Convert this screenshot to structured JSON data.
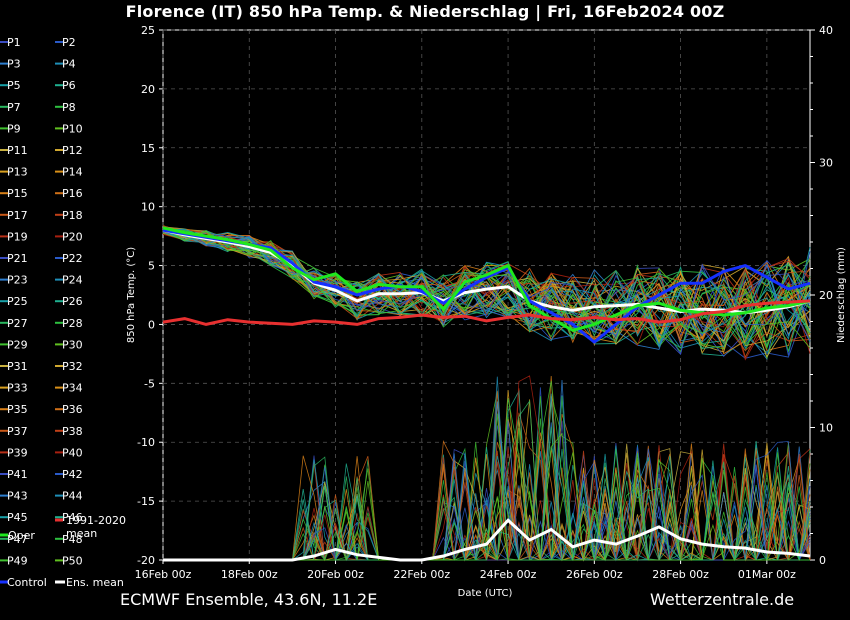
{
  "header": {
    "title": "Florence  (IT)  850 hPa Temp. & Niederschlag | Fri, 16Feb2024 00Z"
  },
  "footer": {
    "source": "ECMWF Ensemble, 43.6N, 11.2E",
    "site": "Wetterzentrale.de"
  },
  "chart_data": {
    "type": "line",
    "xlabel": "Date (UTC)",
    "ylabel": "850 hPa Temp. (°C)",
    "y2label": "Niederschlag (mm)",
    "ylim": [
      -20,
      25
    ],
    "y2lim": [
      0,
      40
    ],
    "y_ticks": [
      25,
      20,
      15,
      10,
      5,
      0,
      -5,
      -10,
      -15,
      -20
    ],
    "y2_ticks": [
      40,
      30,
      20,
      10,
      0
    ],
    "x_tick_labels": [
      "16Feb 00z",
      "18Feb 00z",
      "20Feb 00z",
      "22Feb 00z",
      "24Feb 00z",
      "26Feb 00z",
      "28Feb 00z",
      "01Mar 00z"
    ],
    "x_tick_days": [
      0,
      2,
      4,
      6,
      8,
      10,
      12,
      14
    ],
    "x_days_max": 15,
    "grid": true,
    "legend_position": "left",
    "legend": {
      "members": [
        "P1",
        "P2",
        "P3",
        "P4",
        "P5",
        "P6",
        "P7",
        "P8",
        "P9",
        "P10",
        "P11",
        "P12",
        "P13",
        "P14",
        "P15",
        "P16",
        "P17",
        "P18",
        "P19",
        "P20",
        "P21",
        "P22",
        "P23",
        "P24",
        "P25",
        "P26",
        "P27",
        "P28",
        "P29",
        "P30",
        "P31",
        "P32",
        "P33",
        "P34",
        "P35",
        "P36",
        "P37",
        "P38",
        "P39",
        "P40",
        "P41",
        "P42",
        "P43",
        "P44",
        "P45",
        "P46",
        "P47",
        "P48",
        "P49",
        "P50"
      ],
      "member_colors": [
        "#3a4cc0",
        "#2a5ac8",
        "#2e7fd0",
        "#1f8fb8",
        "#18a0a8",
        "#1fb090",
        "#2ab860",
        "#2ec040",
        "#40c030",
        "#60c020",
        "#c8b040",
        "#d0a830",
        "#d8a020",
        "#d89018",
        "#d88018",
        "#d07018",
        "#c85818",
        "#c04018",
        "#b83018",
        "#a82010",
        "#3a4cc0",
        "#2a5ac8",
        "#2e7fd0",
        "#1f8fb8",
        "#18a0a8",
        "#1fb090",
        "#2ab860",
        "#2ec040",
        "#40c030",
        "#60c020",
        "#c8b040",
        "#d0a830",
        "#d8a020",
        "#d89018",
        "#d88018",
        "#d07018",
        "#c85818",
        "#c04018",
        "#b83018",
        "#a82010",
        "#3a4cc0",
        "#2a5ac8",
        "#2e7fd0",
        "#1f8fb8",
        "#18a0a8",
        "#1fb090",
        "#2ab860",
        "#2ec040",
        "#40c030",
        "#60c020"
      ],
      "control": "Control",
      "mean": "Ens. mean",
      "climate": "1991-2020 mean",
      "oper": "Oper"
    },
    "colors": {
      "control": "#1530ff",
      "mean": "#ffffff",
      "climate": "#e83030",
      "oper": "#1ee81e",
      "grid": "#555555"
    },
    "series": [
      {
        "name": "Ens. mean",
        "x": [
          0,
          0.5,
          1,
          1.5,
          2,
          2.5,
          3,
          3.5,
          4,
          4.5,
          5,
          5.5,
          6,
          6.5,
          7,
          7.5,
          8,
          8.5,
          9,
          9.5,
          10,
          10.5,
          11,
          11.5,
          12,
          12.5,
          13,
          13.5,
          14,
          14.5,
          15
        ],
        "values": [
          8,
          7.6,
          7.3,
          7.0,
          6.6,
          6.1,
          5.0,
          3.5,
          2.9,
          2.0,
          2.6,
          2.6,
          2.7,
          2.0,
          2.7,
          3.0,
          3.2,
          2.0,
          1.5,
          1.2,
          1.5,
          1.6,
          1.7,
          1.4,
          1.1,
          1.3,
          1.2,
          1.0,
          1.2,
          1.5,
          2.0
        ]
      },
      {
        "name": "Control",
        "x": [
          0,
          0.5,
          1,
          1.5,
          2,
          2.5,
          3,
          3.5,
          4,
          4.5,
          5,
          5.5,
          6,
          6.5,
          7,
          7.5,
          8,
          8.5,
          9,
          9.5,
          10,
          10.5,
          11,
          11.5,
          12,
          12.5,
          13,
          13.5,
          14,
          14.5,
          15
        ],
        "values": [
          8,
          7.7,
          7.4,
          7.1,
          6.8,
          6.5,
          5.2,
          3.6,
          3.2,
          2.5,
          3.0,
          3.3,
          2.8,
          1.8,
          3.0,
          4.0,
          4.8,
          2.0,
          1.0,
          0.0,
          -1.5,
          0.0,
          1.5,
          2.5,
          3.5,
          3.5,
          4.5,
          5.0,
          4.0,
          3.0,
          3.5
        ]
      },
      {
        "name": "Oper",
        "x": [
          0,
          0.5,
          1,
          1.5,
          2,
          2.5,
          3,
          3.5,
          4,
          4.5,
          5,
          5.5,
          6,
          6.5,
          7,
          7.5,
          8,
          8.5,
          9,
          9.5,
          10,
          10.5,
          11,
          11.5,
          12,
          12.5,
          13,
          13.5,
          14,
          14.5,
          15
        ],
        "values": [
          8.2,
          7.8,
          7.5,
          7.2,
          6.8,
          6.3,
          4.8,
          3.8,
          4.3,
          2.8,
          3.4,
          3.2,
          3.2,
          1.3,
          3.6,
          4.2,
          5.0,
          1.6,
          0.5,
          -0.5,
          0.0,
          0.8,
          1.6,
          1.8,
          1.2,
          1.0,
          0.8,
          1.0,
          1.4,
          1.6,
          2.0
        ]
      },
      {
        "name": "1991-2020 mean",
        "x": [
          0,
          0.5,
          1,
          1.5,
          2,
          2.5,
          3,
          3.5,
          4,
          4.5,
          5,
          5.5,
          6,
          6.5,
          7,
          7.5,
          8,
          8.5,
          9,
          9.5,
          10,
          10.5,
          11,
          11.5,
          12,
          12.5,
          13,
          13.5,
          14,
          14.5,
          15
        ],
        "values": [
          0.2,
          0.5,
          0.0,
          0.4,
          0.2,
          0.1,
          0.0,
          0.3,
          0.2,
          0.0,
          0.5,
          0.6,
          0.8,
          0.6,
          0.7,
          0.3,
          0.6,
          0.8,
          0.5,
          0.4,
          0.6,
          0.4,
          0.5,
          0.2,
          0.4,
          0.9,
          1.1,
          1.6,
          1.8,
          1.9,
          2.0
        ]
      },
      {
        "name": "Ens. mean precipitation (mm)",
        "axis": "right",
        "x": [
          0,
          1,
          2,
          3,
          3.5,
          4,
          4.5,
          5,
          5.5,
          6,
          6.5,
          7,
          7.5,
          8,
          8.5,
          9,
          9.5,
          10,
          10.5,
          11,
          11.5,
          12,
          12.5,
          13,
          13.5,
          14,
          14.5,
          15
        ],
        "values": [
          0,
          0,
          0,
          0,
          0.3,
          0.8,
          0.4,
          0.2,
          0,
          0,
          0.3,
          0.8,
          1.2,
          3.0,
          1.5,
          2.3,
          1.0,
          1.5,
          1.2,
          1.8,
          2.5,
          1.6,
          1.2,
          1.0,
          0.9,
          0.6,
          0.5,
          0.3
        ]
      }
    ]
  }
}
